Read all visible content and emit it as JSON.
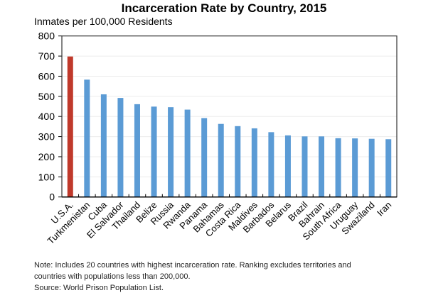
{
  "chart_data": {
    "type": "bar",
    "title": "Incarceration Rate by Country, 2015",
    "ylabel": "Inmates per 100,000 Residents",
    "xlabel": "",
    "ylim": [
      0,
      800
    ],
    "yticks": [
      0,
      100,
      200,
      300,
      400,
      500,
      600,
      700,
      800
    ],
    "grid": true,
    "categories": [
      "U.S.A.",
      "Turkmenistan",
      "Cuba",
      "El Salvador",
      "Thailand",
      "Belize",
      "Russia",
      "Rwanda",
      "Panama",
      "Bahamas",
      "Costa Rica",
      "Maldives",
      "Barbados",
      "Belarus",
      "Brazil",
      "Bahrain",
      "South Africa",
      "Uruguay",
      "Swaziland",
      "Iran"
    ],
    "values": [
      698,
      583,
      510,
      492,
      461,
      449,
      446,
      434,
      392,
      363,
      352,
      341,
      322,
      306,
      301,
      301,
      292,
      291,
      289,
      287
    ],
    "colors": {
      "highlight": "#c0392b",
      "default": "#5b9bd5"
    },
    "highlight_category": "U.S.A."
  },
  "notes": {
    "line1": "Note: Includes 20 countries with highest incarceration rate. Ranking excludes territories and",
    "line2": "countries with populations less than 200,000.",
    "source": "Source: World Prison Population List."
  }
}
